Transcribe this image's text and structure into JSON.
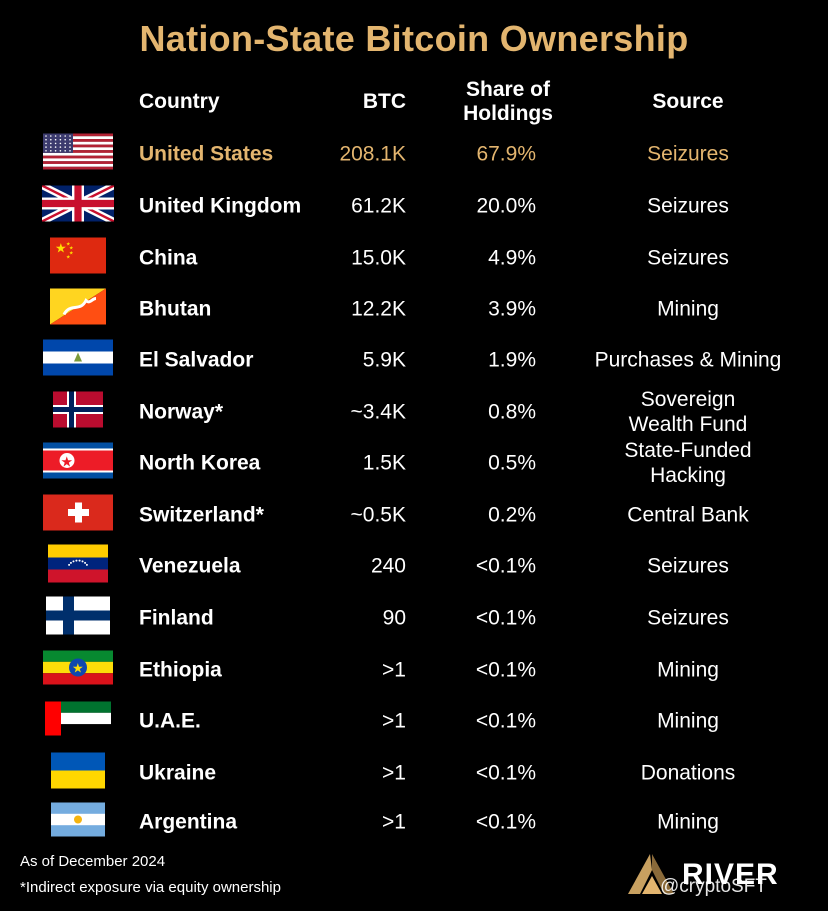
{
  "chart_data": {
    "type": "table",
    "title": "Nation-State Bitcoin Ownership",
    "columns": [
      "Country",
      "BTC",
      "Share of Holdings",
      "Source"
    ],
    "rows": [
      {
        "country": "United States",
        "btc": "208.1K",
        "share": "67.9%",
        "source": "Seizures",
        "flag": "us-flag",
        "highlight": true
      },
      {
        "country": "United Kingdom",
        "btc": "61.2K",
        "share": "20.0%",
        "source": "Seizures",
        "flag": "uk-flag"
      },
      {
        "country": "China",
        "btc": "15.0K",
        "share": "4.9%",
        "source": "Seizures",
        "flag": "china-flag"
      },
      {
        "country": "Bhutan",
        "btc": "12.2K",
        "share": "3.9%",
        "source": "Mining",
        "flag": "bhutan-flag"
      },
      {
        "country": "El Salvador",
        "btc": "5.9K",
        "share": "1.9%",
        "source": "Purchases & Mining",
        "flag": "el-salvador-flag"
      },
      {
        "country": "Norway*",
        "btc": "~3.4K",
        "share": "0.8%",
        "source": "Sovereign\nWealth Fund",
        "flag": "norway-flag"
      },
      {
        "country": "North Korea",
        "btc": "1.5K",
        "share": "0.5%",
        "source": "State-Funded\nHacking",
        "flag": "north-korea-flag"
      },
      {
        "country": "Switzerland*",
        "btc": "~0.5K",
        "share": "0.2%",
        "source": "Central Bank",
        "flag": "switzerland-flag"
      },
      {
        "country": "Venezuela",
        "btc": "240",
        "share": "<0.1%",
        "source": "Seizures",
        "flag": "venezuela-flag"
      },
      {
        "country": "Finland",
        "btc": "90",
        "share": "<0.1%",
        "source": "Seizures",
        "flag": "finland-flag"
      },
      {
        "country": "Ethiopia",
        "btc": ">1",
        "share": "<0.1%",
        "source": "Mining",
        "flag": "ethiopia-flag"
      },
      {
        "country": "U.A.E.",
        "btc": ">1",
        "share": "<0.1%",
        "source": "Mining",
        "flag": "uae-flag"
      },
      {
        "country": "Ukraine",
        "btc": ">1",
        "share": "<0.1%",
        "source": "Donations",
        "flag": "ukraine-flag"
      },
      {
        "country": "Argentina",
        "btc": ">1",
        "share": "<0.1%",
        "source": "Mining",
        "flag": "argentina-flag"
      }
    ]
  },
  "footer": {
    "note1": "As of December 2024",
    "note2": "*Indirect exposure via equity ownership"
  },
  "brand": {
    "logo_text": "RIVER",
    "watermark": "@cryptoSFT",
    "accent_color": "#e3b56f"
  }
}
